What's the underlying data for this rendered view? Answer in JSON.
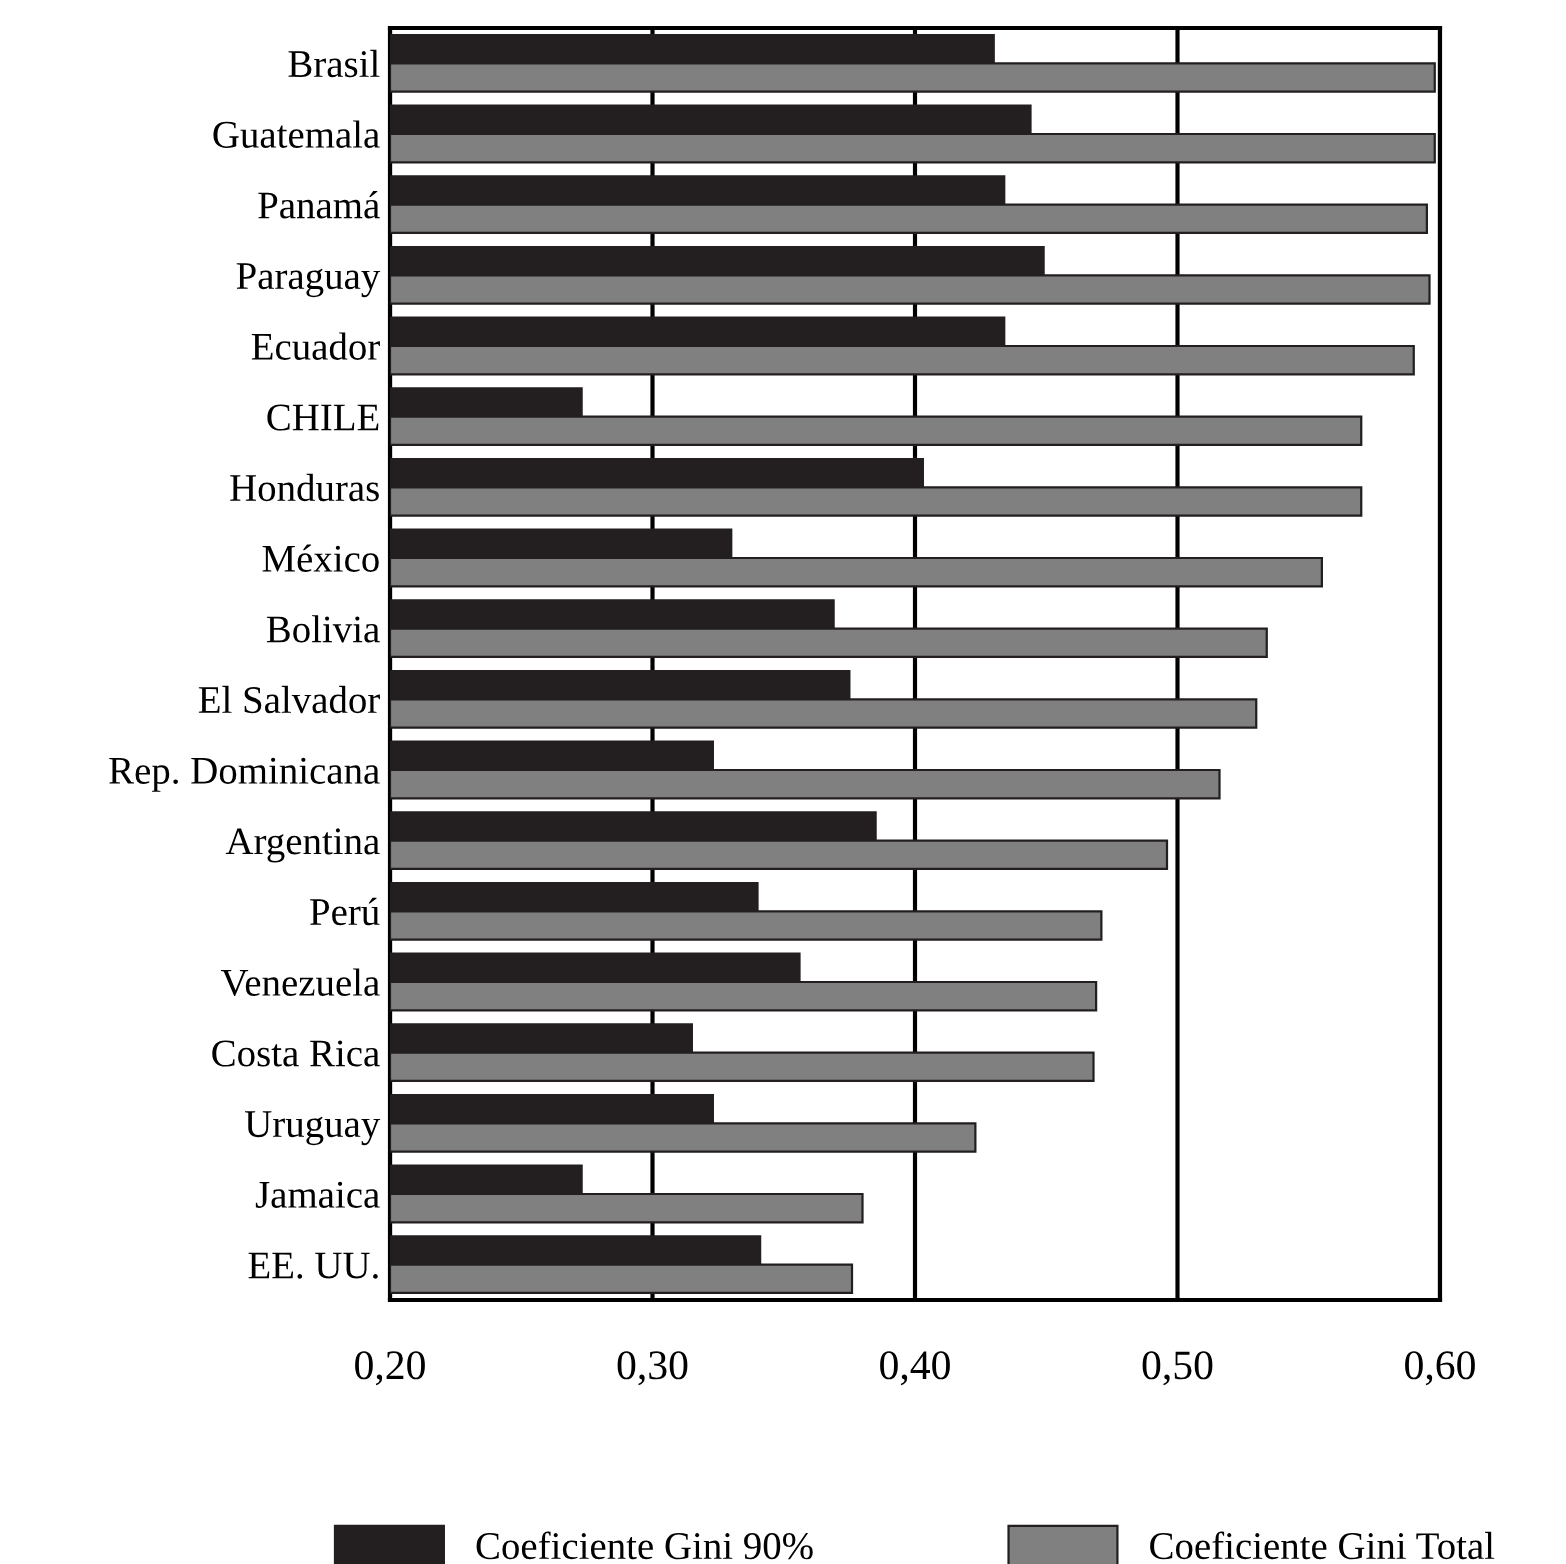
{
  "chart_data": {
    "type": "bar",
    "orientation": "horizontal",
    "categories": [
      "Brasil",
      "Guatemala",
      "Panamá",
      "Paraguay",
      "Ecuador",
      "CHILE",
      "Honduras",
      "México",
      "Bolivia",
      "El Salvador",
      "Rep. Dominicana",
      "Argentina",
      "Perú",
      "Venezuela",
      "Costa Rica",
      "Uruguay",
      "Jamaica",
      "EE. UU."
    ],
    "series": [
      {
        "name": "Coeficiente Gini 90%",
        "color": "#231f20",
        "values": [
          0.43,
          0.444,
          0.434,
          0.449,
          0.434,
          0.273,
          0.403,
          0.33,
          0.369,
          0.375,
          0.323,
          0.385,
          0.34,
          0.356,
          0.315,
          0.323,
          0.273,
          0.341
        ]
      },
      {
        "name": "Coeficiente Gini Total",
        "color": "#808080",
        "values": [
          0.598,
          0.598,
          0.595,
          0.596,
          0.59,
          0.57,
          0.57,
          0.555,
          0.534,
          0.53,
          0.516,
          0.496,
          0.471,
          0.469,
          0.468,
          0.423,
          0.38,
          0.376
        ]
      }
    ],
    "xlim": [
      0.2,
      0.6
    ],
    "xticks": [
      {
        "value": 0.2,
        "label": "0,20"
      },
      {
        "value": 0.3,
        "label": "0,30"
      },
      {
        "value": 0.4,
        "label": "0,40"
      },
      {
        "value": 0.5,
        "label": "0,50"
      },
      {
        "value": 0.6,
        "label": "0,60"
      }
    ],
    "grid": "x",
    "legend": "bottom"
  }
}
